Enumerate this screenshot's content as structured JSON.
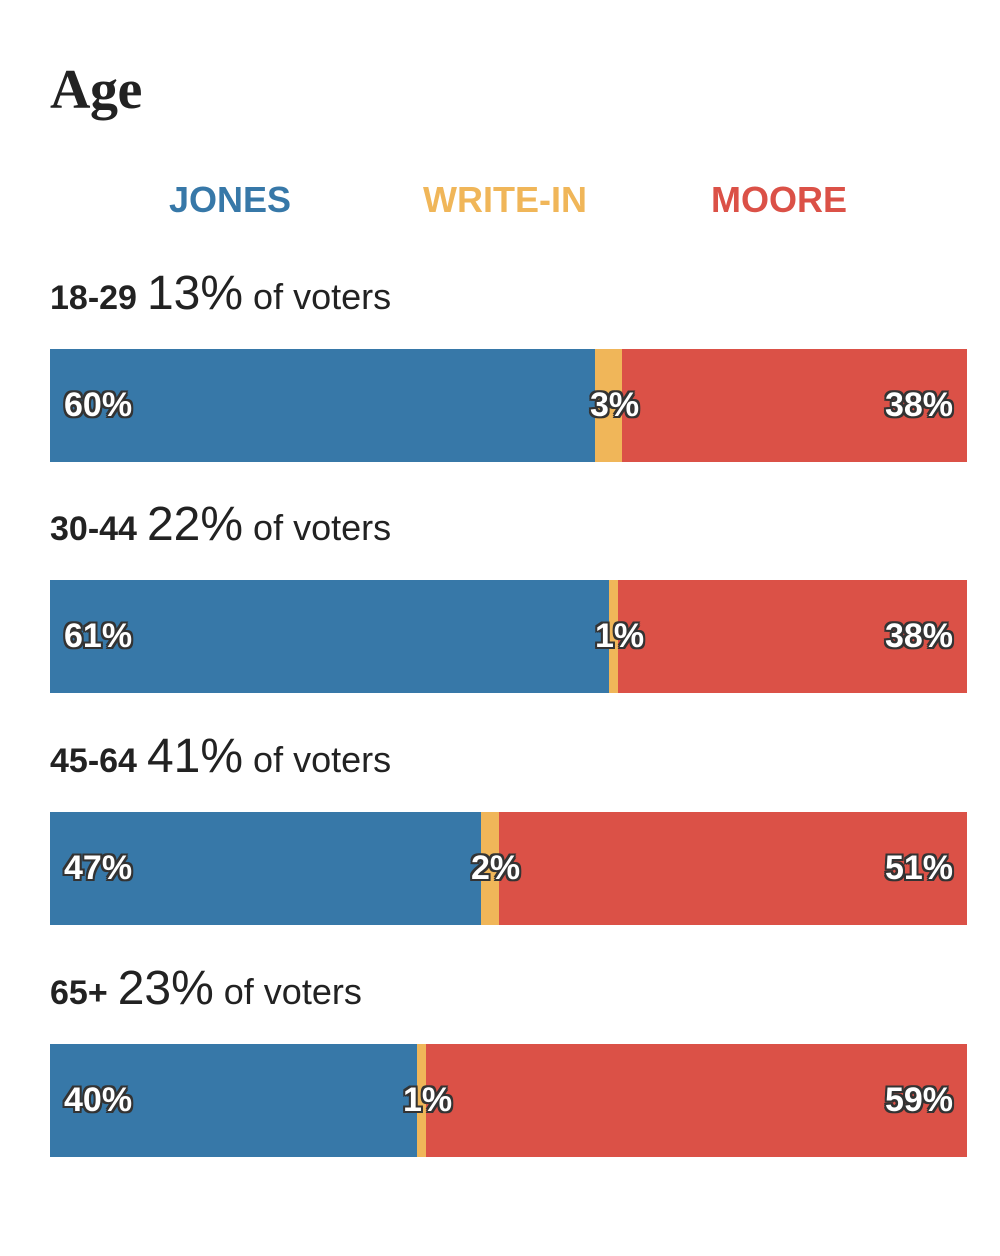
{
  "title": "Age",
  "colors": {
    "jones": "#3778a8",
    "writein": "#f0b659",
    "moore": "#db5147"
  },
  "chart_data": {
    "type": "bar",
    "orientation": "horizontal",
    "stacked": true,
    "normalized": true,
    "title": "Age",
    "legend": [
      {
        "name": "JONES",
        "key": "jones"
      },
      {
        "name": "WRITE-IN",
        "key": "writein"
      },
      {
        "name": "MOORE",
        "key": "moore"
      }
    ],
    "legend_position": "top",
    "categories": [
      "18-29",
      "30-44",
      "45-64",
      "65+"
    ],
    "share_suffix": "of voters",
    "groups": [
      {
        "age": "18-29",
        "share": "13%",
        "values": {
          "jones": 60,
          "writein": 3,
          "moore": 38
        },
        "labels": {
          "jones": "60%",
          "writein": "3%",
          "moore": "38%"
        }
      },
      {
        "age": "30-44",
        "share": "22%",
        "values": {
          "jones": 61,
          "writein": 1,
          "moore": 38
        },
        "labels": {
          "jones": "61%",
          "writein": "1%",
          "moore": "38%"
        }
      },
      {
        "age": "45-64",
        "share": "41%",
        "values": {
          "jones": 47,
          "writein": 2,
          "moore": 51
        },
        "labels": {
          "jones": "47%",
          "writein": "2%",
          "moore": "51%"
        }
      },
      {
        "age": "65+",
        "share": "23%",
        "values": {
          "jones": 40,
          "writein": 1,
          "moore": 59
        },
        "labels": {
          "jones": "40%",
          "writein": "1%",
          "moore": "59%"
        }
      }
    ]
  }
}
